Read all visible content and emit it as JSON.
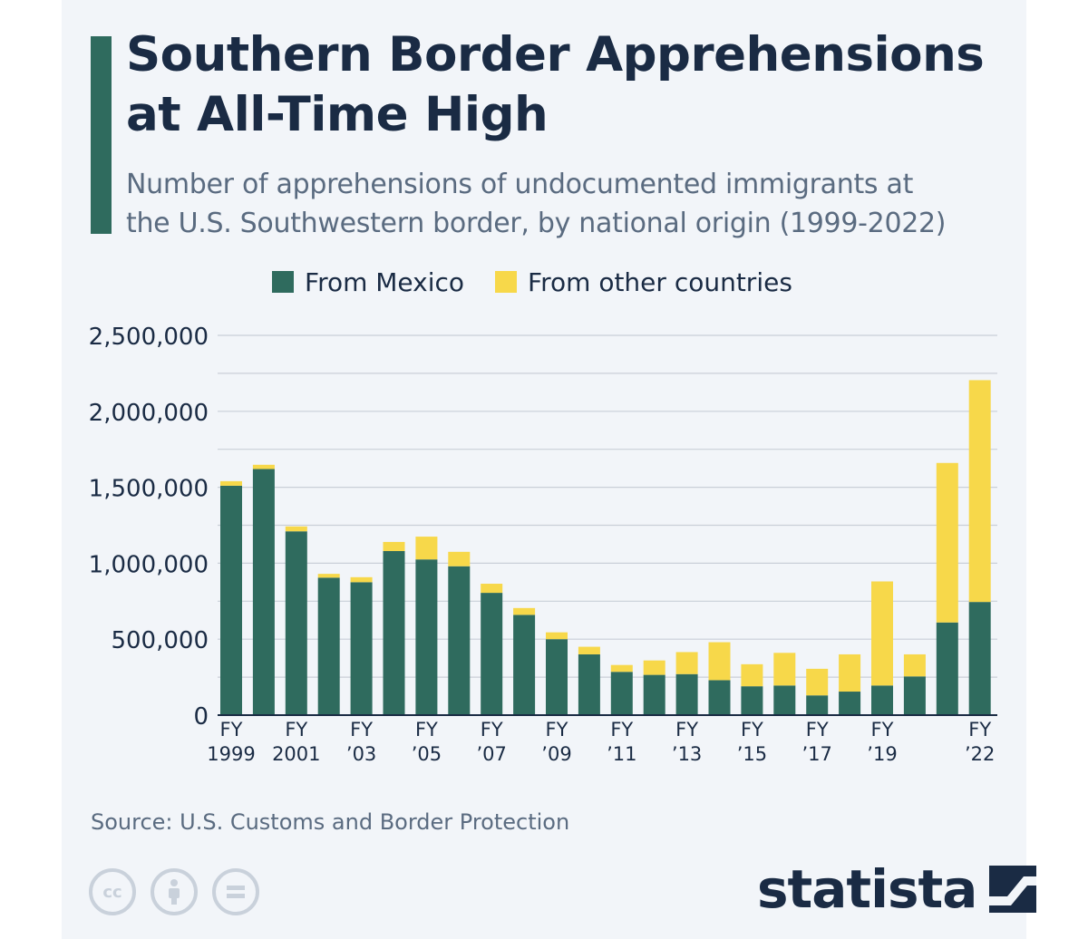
{
  "header": {
    "title_line1": "Southern Border Apprehensions",
    "title_line2": "at All-Time High",
    "subtitle_line1": "Number of apprehensions of undocumented immigrants at",
    "subtitle_line2": "the U.S. Southwestern border, by national origin (1999-2022)"
  },
  "footer": {
    "source": "Source: U.S. Customs and Border Protection",
    "brand": "statista",
    "license_icons": [
      "cc-icon",
      "attribution-icon",
      "no-derivatives-icon"
    ]
  },
  "colors": {
    "mexico": "#2f6b5e",
    "other": "#f7d84a",
    "grid": "#c9cfd8",
    "axis": "#1a2b44"
  },
  "chart_data": {
    "type": "bar",
    "stacked": true,
    "title": "Southern Border Apprehensions at All-Time High",
    "legend_position": "top",
    "grid": true,
    "ylim": [
      0,
      2500000
    ],
    "yticks": [
      0,
      500000,
      1000000,
      1500000,
      2000000,
      2500000
    ],
    "ytick_labels": [
      "0",
      "500,000",
      "1,000,000",
      "1,500,000",
      "2,000,000",
      "2,500,000"
    ],
    "categories": [
      "FY 1999",
      "FY 2000",
      "FY 2001",
      "FY 2002",
      "FY 2003",
      "FY 2004",
      "FY 2005",
      "FY 2006",
      "FY 2007",
      "FY 2008",
      "FY 2009",
      "FY 2010",
      "FY 2011",
      "FY 2012",
      "FY 2013",
      "FY 2014",
      "FY 2015",
      "FY 2016",
      "FY 2017",
      "FY 2018",
      "FY 2019",
      "FY 2020",
      "FY 2021",
      "FY 2022"
    ],
    "xtick_labels": [
      {
        "index": 0,
        "line1": "FY",
        "line2": "1999"
      },
      {
        "index": 2,
        "line1": "FY",
        "line2": "2001"
      },
      {
        "index": 4,
        "line1": "FY",
        "line2": "’03"
      },
      {
        "index": 6,
        "line1": "FY",
        "line2": "’05"
      },
      {
        "index": 8,
        "line1": "FY",
        "line2": "’07"
      },
      {
        "index": 10,
        "line1": "FY",
        "line2": "’09"
      },
      {
        "index": 12,
        "line1": "FY",
        "line2": "’11"
      },
      {
        "index": 14,
        "line1": "FY",
        "line2": "’13"
      },
      {
        "index": 16,
        "line1": "FY",
        "line2": "’15"
      },
      {
        "index": 18,
        "line1": "FY",
        "line2": "’17"
      },
      {
        "index": 20,
        "line1": "FY",
        "line2": "’19"
      },
      {
        "index": 23,
        "line1": "FY",
        "line2": "’22"
      }
    ],
    "series": [
      {
        "name": "From Mexico",
        "color": "#2f6b5e",
        "values": [
          1510000,
          1620000,
          1210000,
          905000,
          875000,
          1080000,
          1025000,
          980000,
          805000,
          660000,
          500000,
          400000,
          285000,
          265000,
          270000,
          230000,
          190000,
          195000,
          130000,
          155000,
          195000,
          255000,
          610000,
          745000
        ]
      },
      {
        "name": "From other countries",
        "color": "#f7d84a",
        "values": [
          30000,
          28000,
          32000,
          25000,
          33000,
          60000,
          150000,
          95000,
          60000,
          45000,
          45000,
          50000,
          45000,
          95000,
          145000,
          250000,
          145000,
          215000,
          175000,
          245000,
          685000,
          145000,
          1050000,
          1460000
        ]
      }
    ]
  }
}
